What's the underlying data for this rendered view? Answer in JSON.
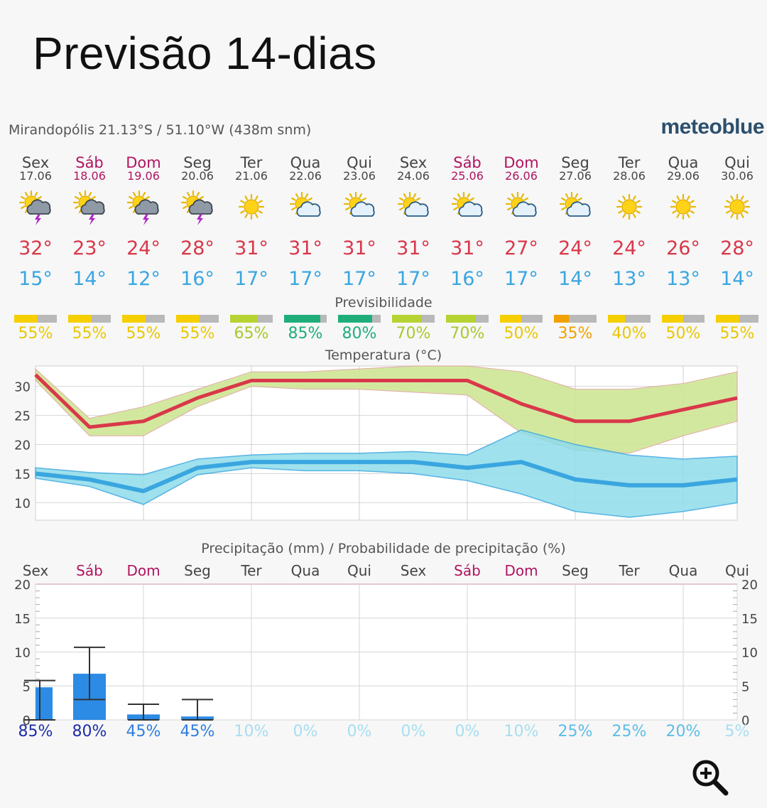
{
  "header": {
    "title": "Previsão 14-dias",
    "location": "Mirandopólis  21.13°S / 51.10°W (438m snm)",
    "brand": "meteoblue"
  },
  "colors": {
    "weekday": "#444444",
    "weekend": "#b0145f",
    "tmax": "#d9384a",
    "tmin": "#3aa6e0",
    "precip_bar": "#2b8be5"
  },
  "chart_data": [
    {
      "type": "table",
      "days": [
        {
          "day": "Sex",
          "date": "17.06",
          "weekend": false,
          "icon": "sun-cloud-thunder-icon",
          "tmax": 32,
          "tmin": 15,
          "pred": 55
        },
        {
          "day": "Sáb",
          "date": "18.06",
          "weekend": true,
          "icon": "sun-cloud-thunder-icon",
          "tmax": 23,
          "tmin": 14,
          "pred": 55
        },
        {
          "day": "Dom",
          "date": "19.06",
          "weekend": true,
          "icon": "sun-cloud-thunder-icon",
          "tmax": 24,
          "tmin": 12,
          "pred": 55
        },
        {
          "day": "Seg",
          "date": "20.06",
          "weekend": false,
          "icon": "sun-cloud-thunder-icon",
          "tmax": 28,
          "tmin": 16,
          "pred": 55
        },
        {
          "day": "Ter",
          "date": "21.06",
          "weekend": false,
          "icon": "sun-icon",
          "tmax": 31,
          "tmin": 17,
          "pred": 65
        },
        {
          "day": "Qua",
          "date": "22.06",
          "weekend": false,
          "icon": "sun-cloud-icon",
          "tmax": 31,
          "tmin": 17,
          "pred": 85
        },
        {
          "day": "Qui",
          "date": "23.06",
          "weekend": false,
          "icon": "sun-cloud-icon",
          "tmax": 31,
          "tmin": 17,
          "pred": 80
        },
        {
          "day": "Sex",
          "date": "24.06",
          "weekend": false,
          "icon": "sun-cloud-icon",
          "tmax": 31,
          "tmin": 17,
          "pred": 70
        },
        {
          "day": "Sáb",
          "date": "25.06",
          "weekend": true,
          "icon": "sun-cloud-icon",
          "tmax": 31,
          "tmin": 16,
          "pred": 70
        },
        {
          "day": "Dom",
          "date": "26.06",
          "weekend": true,
          "icon": "sun-cloud-icon",
          "tmax": 27,
          "tmin": 17,
          "pred": 50
        },
        {
          "day": "Seg",
          "date": "27.06",
          "weekend": false,
          "icon": "sun-cloud-icon",
          "tmax": 24,
          "tmin": 14,
          "pred": 35
        },
        {
          "day": "Ter",
          "date": "28.06",
          "weekend": false,
          "icon": "sun-icon",
          "tmax": 24,
          "tmin": 13,
          "pred": 40
        },
        {
          "day": "Qua",
          "date": "29.06",
          "weekend": false,
          "icon": "sun-icon",
          "tmax": 26,
          "tmin": 13,
          "pred": 50
        },
        {
          "day": "Qui",
          "date": "30.06",
          "weekend": false,
          "icon": "sun-icon",
          "tmax": 28,
          "tmin": 14,
          "pred": 55
        }
      ],
      "degree_symbol": "°",
      "percent_symbol": "%"
    },
    {
      "type": "bar",
      "title": "Previsibilidade",
      "values": [
        55,
        55,
        55,
        55,
        65,
        85,
        80,
        70,
        70,
        50,
        35,
        40,
        50,
        55
      ],
      "ylim": [
        0,
        100
      ]
    },
    {
      "type": "line",
      "title": "Temperatura (°C)",
      "x": [
        "17.06",
        "18.06",
        "19.06",
        "20.06",
        "21.06",
        "22.06",
        "23.06",
        "24.06",
        "25.06",
        "26.06",
        "27.06",
        "28.06",
        "29.06",
        "30.06"
      ],
      "series": [
        {
          "values": [
            32,
            23,
            24,
            28,
            31,
            31,
            31,
            31,
            31,
            27,
            24,
            24,
            26,
            28
          ],
          "band_upper": [
            33,
            24.5,
            26.5,
            29.5,
            32.5,
            32.5,
            33,
            33.5,
            33.5,
            32.5,
            29.5,
            29.5,
            30.5,
            32.5
          ],
          "band_lower": [
            31,
            21.5,
            21.5,
            26.5,
            30,
            29.5,
            29.5,
            29,
            28.5,
            22,
            19,
            18.5,
            21.5,
            24
          ]
        },
        {
          "values": [
            15,
            14,
            12,
            16,
            17,
            17,
            17,
            17,
            16,
            17,
            14,
            13,
            13,
            14
          ],
          "band_upper": [
            16,
            15.2,
            14.8,
            17.5,
            18.2,
            18.5,
            18.5,
            18.8,
            18.2,
            22.5,
            20,
            18.2,
            17.5,
            18
          ],
          "band_lower": [
            14.2,
            12.8,
            9.7,
            14.8,
            16,
            15.5,
            15.5,
            15,
            13.8,
            11.5,
            8.5,
            7.5,
            8.5,
            10
          ]
        }
      ],
      "yticks": [
        10,
        15,
        20,
        25,
        30
      ],
      "ylim": [
        7,
        33.5
      ]
    },
    {
      "type": "bar",
      "title": "Precipitação (mm) / Probabilidade de precipitação (%)",
      "categories": [
        "Sex",
        "Sáb",
        "Dom",
        "Seg",
        "Ter",
        "Qua",
        "Qui",
        "Sex",
        "Sáb",
        "Dom",
        "Seg",
        "Ter",
        "Qua",
        "Qui"
      ],
      "values": [
        4.8,
        6.8,
        0.8,
        0.5,
        0,
        0,
        0,
        0,
        0,
        0,
        0,
        0,
        0,
        0
      ],
      "range_low": [
        0,
        3,
        0,
        0,
        null,
        null,
        null,
        null,
        null,
        null,
        null,
        null,
        null,
        null
      ],
      "range_high": [
        5.8,
        10.7,
        2.3,
        3,
        null,
        null,
        null,
        null,
        null,
        null,
        null,
        null,
        null,
        null
      ],
      "probability": [
        85,
        80,
        45,
        45,
        10,
        0,
        0,
        0,
        0,
        10,
        25,
        25,
        20,
        5
      ],
      "yticks": [
        0,
        5,
        10,
        15,
        20
      ],
      "ylim": [
        0,
        20
      ]
    }
  ]
}
